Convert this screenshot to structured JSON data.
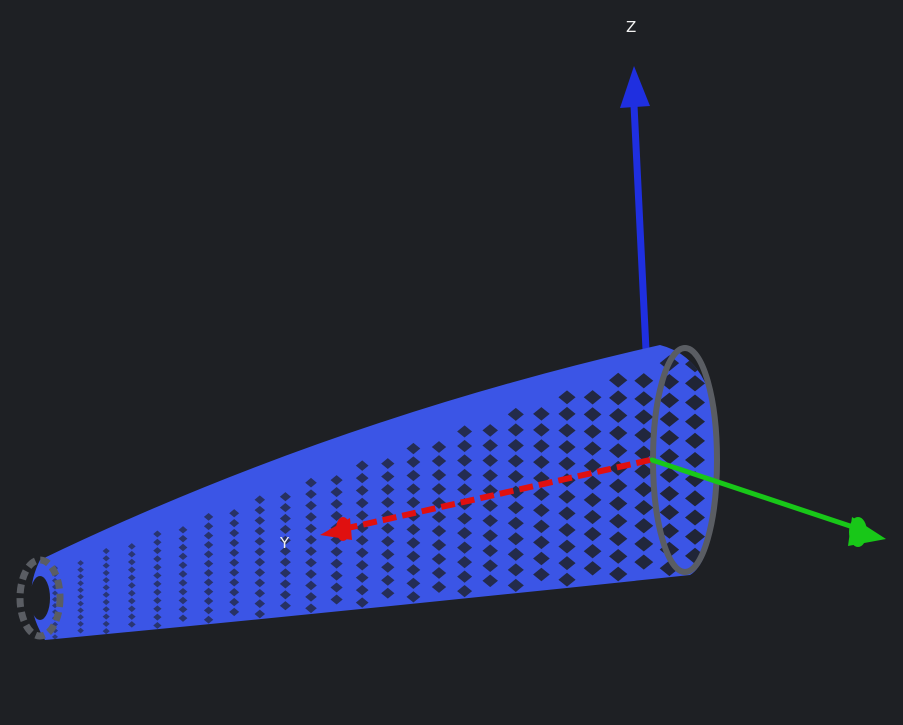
{
  "viewer": {
    "background_color": "#1e2024",
    "mesh_color": "#3b55e6",
    "mesh_edge_color": "#2a3cb0",
    "end_ring_color": "#5a5d63"
  },
  "axes": {
    "z": {
      "label": "Z",
      "color": "#1f2fe0",
      "icon": "arrow-z-icon"
    },
    "y": {
      "label": "Y",
      "color": "#18c718",
      "icon": "arrow-y-icon"
    },
    "x": {
      "label": "",
      "color": "#e01010",
      "icon": "arrow-x-icon"
    }
  },
  "model": {
    "shape": "tapered-lattice-tube",
    "icon": "lattice-cone-icon"
  }
}
